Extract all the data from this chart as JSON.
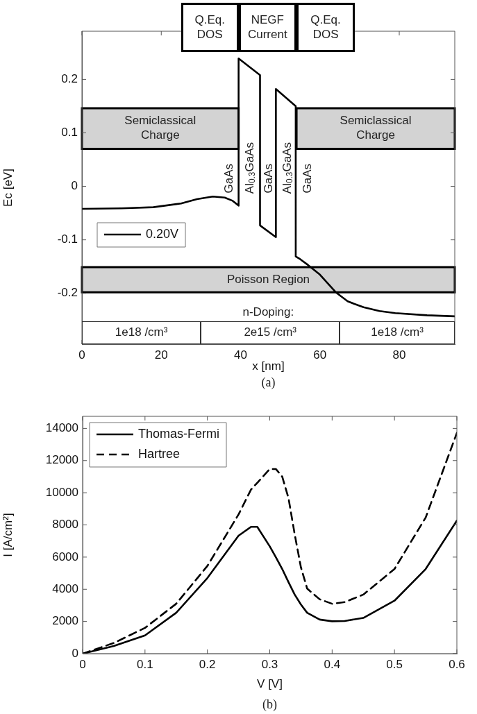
{
  "chart_data": [
    {
      "type": "line",
      "xlabel": "x [nm]",
      "ylabel": "Ec [eV]",
      "x": [
        0,
        10,
        18,
        25,
        29,
        33,
        36,
        38,
        39.5,
        39.5,
        44.9,
        44.9,
        48.9,
        48.9,
        53.9,
        53.9,
        55,
        57,
        60,
        64,
        67,
        71,
        75,
        79,
        87,
        94
      ],
      "series": [
        {
          "name": "0.20V",
          "color": "#000000",
          "values": [
            -0.042,
            -0.041,
            -0.039,
            -0.032,
            -0.024,
            -0.019,
            -0.021,
            -0.027,
            -0.036,
            0.239,
            0.208,
            -0.073,
            -0.095,
            0.182,
            0.15,
            -0.131,
            -0.136,
            -0.147,
            -0.165,
            -0.198,
            -0.215,
            -0.226,
            -0.233,
            -0.237,
            -0.241,
            -0.243
          ]
        }
      ],
      "xlim": [
        0,
        94
      ],
      "ylim": [
        -0.295,
        0.29
      ],
      "xticks": [
        0,
        20,
        40,
        60,
        80
      ],
      "yticks": [
        -0.2,
        -0.1,
        0,
        0.1,
        0.2
      ],
      "marker": "none",
      "line_style": "solid",
      "legend": "left",
      "bands": [
        {
          "axis": "x",
          "from": 0,
          "to": 39.5,
          "label": "Semiclassical Charge",
          "color": "#d3d3d3"
        },
        {
          "axis": "x",
          "from": 54.1,
          "to": 94,
          "label": "Semiclassical Charge",
          "color": "#d3d3d3"
        },
        {
          "axis": "y",
          "from": -0.198,
          "to": -0.151,
          "label": "Poisson Region",
          "color": "#d3d3d3"
        }
      ],
      "annotations": [
        "Q.Eq. DOS",
        "NEGF Current",
        "Q.Eq. DOS",
        "GaAs",
        "Al$_{0.3}$GaAs",
        "GaAs",
        "Al$_{0.3}$GaAs",
        "GaAs",
        "n-Doping:",
        "1e18 /cm³",
        "2e15 /cm³",
        "1e18 /cm³",
        "(a)"
      ]
    },
    {
      "type": "line",
      "xlabel": "V [V]",
      "ylabel": "I [A/cm²]",
      "x": [
        0,
        0.05,
        0.1,
        0.15,
        0.2,
        0.25,
        0.27,
        0.28,
        0.3,
        0.31,
        0.32,
        0.33,
        0.34,
        0.35,
        0.36,
        0.38,
        0.4,
        0.42,
        0.45,
        0.5,
        0.55,
        0.6
      ],
      "series": [
        {
          "name": "Thomas-Fermi",
          "color": "#000000",
          "line_style": "solid",
          "values": [
            0,
            470,
            1130,
            2540,
            4700,
            7330,
            7880,
            7880,
            6670,
            5980,
            5260,
            4450,
            3670,
            3050,
            2540,
            2120,
            2010,
            2030,
            2220,
            3290,
            5260,
            8270
          ]
        },
        {
          "name": "Hartree",
          "color": "#000000",
          "line_style": "dashed",
          "values": [
            0,
            660,
            1600,
            3100,
            5450,
            8650,
            10200,
            10620,
            11470,
            11470,
            11000,
            9680,
            7420,
            5360,
            4040,
            3380,
            3100,
            3200,
            3670,
            5260,
            8460,
            13720
          ]
        }
      ],
      "xlim": [
        0,
        0.6
      ],
      "ylim": [
        0,
        14750
      ],
      "xticks": [
        0,
        0.1,
        0.2,
        0.3,
        0.4,
        0.5,
        0.6
      ],
      "yticks": [
        0,
        2000,
        4000,
        6000,
        8000,
        10000,
        12000,
        14000
      ],
      "marker": "none",
      "legend": "top left",
      "annotations": [
        "(b)"
      ]
    }
  ]
}
